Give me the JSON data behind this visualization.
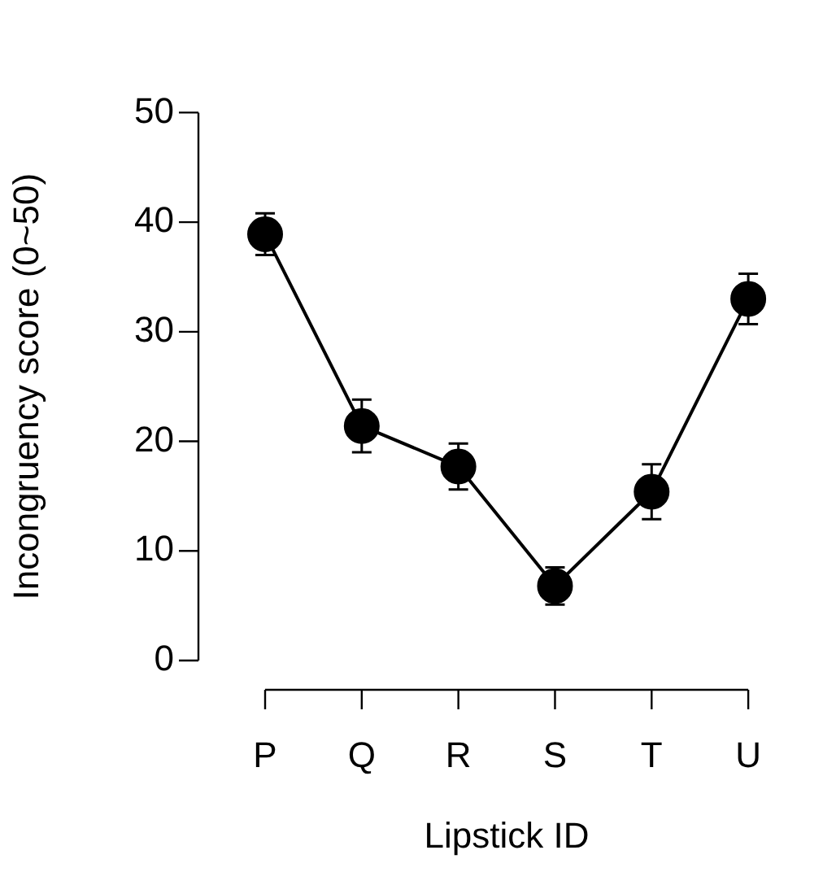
{
  "chart_data": {
    "type": "line",
    "xlabel": "Lipstick ID",
    "ylabel": "Incongruency score (0~50)",
    "categories": [
      "P",
      "Q",
      "R",
      "S",
      "T",
      "U"
    ],
    "values": [
      38.9,
      21.4,
      17.7,
      6.8,
      15.4,
      33.0
    ],
    "errors": [
      1.9,
      2.4,
      2.1,
      1.7,
      2.5,
      2.3
    ],
    "color": "#000000",
    "marker": "circle",
    "line_style": "solid",
    "ylim": [
      0,
      50
    ],
    "yticks": [
      0,
      10,
      20,
      30,
      40,
      50
    ],
    "grid": false,
    "legend": false
  }
}
